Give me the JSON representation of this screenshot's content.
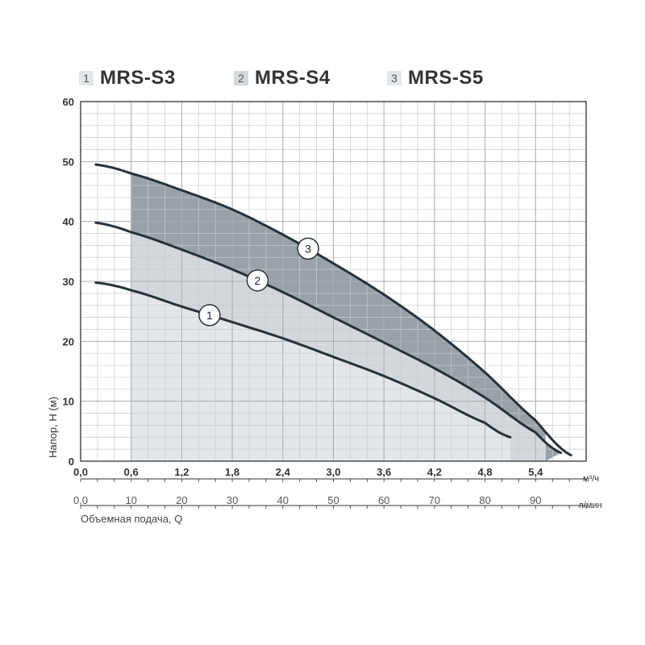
{
  "legend": [
    {
      "num": "1",
      "name": "MRS-S3",
      "swatch": "#e4e7ea"
    },
    {
      "num": "2",
      "name": "MRS-S4",
      "swatch": "#d4d8dc"
    },
    {
      "num": "3",
      "name": "MRS-S5",
      "swatch": "#e4e7ea"
    }
  ],
  "chart_data": {
    "type": "line",
    "ylabel": "Напор, H (м)",
    "xlabel": "Объемная подача, Q",
    "x_unit_top": "м³/ч",
    "x_unit_bottom": "л/мин",
    "ylim": [
      0,
      60
    ],
    "yticks": [
      "0",
      "10",
      "20",
      "30",
      "40",
      "50",
      "60"
    ],
    "xlim_m3h": [
      0,
      6
    ],
    "xticks_m3h": [
      "0,0",
      "0,6",
      "1,2",
      "1,8",
      "2,4",
      "3,0",
      "3,6",
      "4,2",
      "4,8",
      "5,4"
    ],
    "xticks_lmin": [
      "0,0",
      "10",
      "20",
      "30",
      "40",
      "50",
      "60",
      "70",
      "80",
      "90"
    ],
    "grid": true,
    "operating_range_lmin": [
      10,
      92
    ],
    "series": [
      {
        "name": "MRS-S3",
        "label": "1",
        "x": [
          3,
          10,
          20,
          30,
          40,
          50,
          60,
          70,
          80,
          85
        ],
        "y": [
          29.8,
          28.5,
          25.8,
          23.2,
          20.5,
          17.4,
          14.2,
          10.5,
          6.4,
          4.0
        ]
      },
      {
        "name": "MRS-S4",
        "label": "2",
        "x": [
          3,
          10,
          20,
          30,
          40,
          50,
          60,
          70,
          80,
          90,
          95
        ],
        "y": [
          39.8,
          38.2,
          35.3,
          32.0,
          28.2,
          24.0,
          19.8,
          15.5,
          10.6,
          4.8,
          1.4
        ]
      },
      {
        "name": "MRS-S5",
        "label": "3",
        "x": [
          3,
          10,
          20,
          30,
          40,
          50,
          60,
          70,
          80,
          90,
          97
        ],
        "y": [
          49.5,
          48.0,
          45.2,
          42.0,
          37.8,
          33.0,
          27.8,
          21.8,
          14.8,
          6.8,
          1.0
        ]
      }
    ],
    "colors": {
      "line": "#263238",
      "band1": "#e4e7ea",
      "band2": "#d4d8dc",
      "band3": "#9aa1a8",
      "grid": "#c9ccd0",
      "axis": "#333333"
    }
  }
}
